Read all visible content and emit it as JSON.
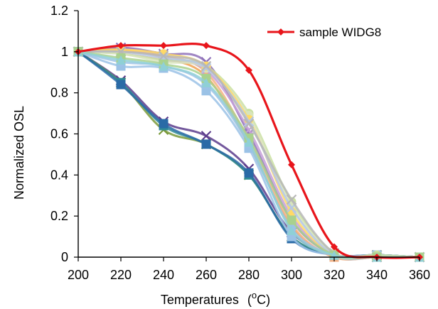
{
  "chart_data": {
    "type": "line",
    "xlabel": "Temperatures",
    "xlabel_unit_pre": "(",
    "xlabel_unit_sup": "o",
    "xlabel_unit_post": "C)",
    "ylabel": "Normalized OSL",
    "xlim": [
      200,
      360
    ],
    "ylim": [
      0,
      1.2
    ],
    "x_ticks": [
      "200",
      "220",
      "240",
      "260",
      "280",
      "300",
      "320",
      "340",
      "360"
    ],
    "y_ticks": [
      "0",
      "0.2",
      "0.4",
      "0.6",
      "0.8",
      "1",
      "1.2"
    ],
    "grid": false,
    "legend_position": "top-right",
    "x": [
      200,
      220,
      240,
      260,
      280,
      300,
      320,
      340,
      360
    ],
    "series": [
      {
        "name": "sample WIDG8",
        "color": "#e8151b",
        "marker": "diamond",
        "highlight": true,
        "values": [
          1.0,
          1.03,
          1.03,
          1.03,
          0.91,
          0.45,
          0.05,
          0.0,
          0.0
        ]
      },
      {
        "color": "#5b3b8c",
        "marker": "x",
        "values": [
          1.0,
          0.86,
          0.66,
          0.59,
          0.43,
          0.12,
          0.01,
          0.01,
          0.0
        ]
      },
      {
        "color": "#7a9a3a",
        "marker": "x",
        "values": [
          1.0,
          0.85,
          0.62,
          0.55,
          0.4,
          0.1,
          0.01,
          0.01,
          0.0
        ]
      },
      {
        "color": "#2e8a96",
        "marker": "square",
        "values": [
          1.0,
          0.85,
          0.64,
          0.55,
          0.4,
          0.1,
          0.01,
          0.01,
          0.0
        ]
      },
      {
        "color": "#2a6aa6",
        "marker": "square",
        "values": [
          1.0,
          0.84,
          0.65,
          0.55,
          0.41,
          0.09,
          0.01,
          0.01,
          0.0
        ]
      },
      {
        "color": "#8e70b8",
        "marker": "x",
        "values": [
          1.0,
          1.02,
          0.99,
          0.95,
          0.6,
          0.18,
          0.01,
          0.0,
          0.0
        ]
      },
      {
        "color": "#f0a050",
        "marker": "triangle",
        "values": [
          1.0,
          1.01,
          0.97,
          0.88,
          0.55,
          0.15,
          0.0,
          0.0,
          0.0
        ]
      },
      {
        "color": "#f4b183",
        "marker": "square",
        "values": [
          1.0,
          1.0,
          0.98,
          0.9,
          0.57,
          0.16,
          0.0,
          0.0,
          0.0
        ]
      },
      {
        "color": "#c5a0d8",
        "marker": "x",
        "values": [
          1.0,
          0.99,
          0.96,
          0.91,
          0.62,
          0.2,
          0.01,
          0.0,
          0.0
        ]
      },
      {
        "color": "#9bc2e6",
        "marker": "square",
        "values": [
          1.0,
          0.93,
          0.92,
          0.81,
          0.53,
          0.1,
          0.01,
          0.01,
          0.0
        ]
      },
      {
        "color": "#9dc3e6",
        "marker": "circle",
        "values": [
          1.0,
          0.95,
          0.93,
          0.84,
          0.55,
          0.14,
          0.01,
          0.0,
          0.0
        ]
      },
      {
        "color": "#c9e0a0",
        "marker": "circle",
        "values": [
          1.0,
          0.99,
          0.96,
          0.93,
          0.7,
          0.27,
          0.02,
          0.01,
          0.0
        ]
      },
      {
        "color": "#d8e4bc",
        "marker": "circle",
        "values": [
          1.0,
          0.99,
          0.95,
          0.92,
          0.69,
          0.25,
          0.02,
          0.0,
          0.0
        ]
      },
      {
        "color": "#ffd966",
        "marker": "circle",
        "values": [
          1.0,
          1.01,
          0.99,
          0.93,
          0.67,
          0.22,
          0.01,
          0.0,
          0.0
        ]
      },
      {
        "color": "#b4c7e7",
        "marker": "x",
        "values": [
          1.0,
          1.0,
          0.97,
          0.92,
          0.66,
          0.24,
          0.01,
          0.0,
          0.0
        ]
      },
      {
        "color": "#b7b7b7",
        "marker": "x",
        "values": [
          1.0,
          1.0,
          0.98,
          0.93,
          0.65,
          0.28,
          0.02,
          0.0,
          0.0
        ]
      },
      {
        "color": "#a9d18e",
        "marker": "square",
        "values": [
          1.0,
          0.97,
          0.94,
          0.87,
          0.58,
          0.18,
          0.01,
          0.0,
          0.0
        ]
      },
      {
        "color": "#8fd0d6",
        "marker": "triangle",
        "values": [
          1.0,
          0.96,
          0.93,
          0.85,
          0.56,
          0.13,
          0.01,
          0.0,
          0.0
        ]
      }
    ]
  }
}
